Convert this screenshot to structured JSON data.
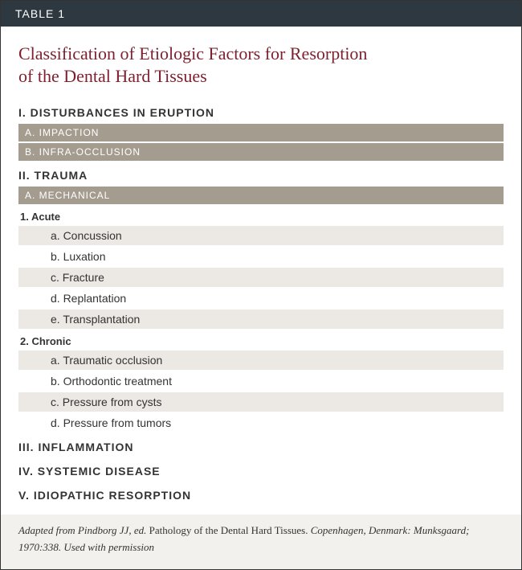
{
  "colors": {
    "header_bg": "#2d3840",
    "header_fg": "#ffffff",
    "title_fg": "#7d1f2f",
    "band_bg": "#a59c90",
    "band_fg": "#ffffff",
    "stripe_bg": "#ece8e3",
    "footer_bg": "#f3f1ee",
    "text": "#333333"
  },
  "header": {
    "label": "TABLE 1"
  },
  "title": {
    "line1": "Classification of Etiologic Factors for Resorption",
    "line2": "of the Dental Hard Tissues"
  },
  "sections": {
    "s1": {
      "heading": "I. DISTURBANCES IN ERUPTION",
      "bands": {
        "a": "A. IMPACTION",
        "b": "B. INFRA-OCCLUSION"
      }
    },
    "s2": {
      "heading": "II. TRAUMA",
      "bands": {
        "a": "A. MECHANICAL"
      },
      "sub1": {
        "heading": "1. Acute",
        "items": {
          "a": "a. Concussion",
          "b": "b. Luxation",
          "c": "c. Fracture",
          "d": "d. Replantation",
          "e": "e. Transplantation"
        }
      },
      "sub2": {
        "heading": "2. Chronic",
        "items": {
          "a": "a. Traumatic occlusion",
          "b": "b. Orthodontic treatment",
          "c": "c. Pressure from cysts",
          "d": "d. Pressure from tumors"
        }
      }
    },
    "s3": {
      "heading": "III. INFLAMMATION"
    },
    "s4": {
      "heading": "IV. SYSTEMIC DISEASE"
    },
    "s5": {
      "heading": "V. IDIOPATHIC RESORPTION"
    }
  },
  "footer": {
    "pre": "Adapted from Pindborg JJ, ed. ",
    "book": "Pathology of the Dental Hard Tissues.",
    "post": " Copenhagen, Denmark: Munksgaard; 1970:338. Used with permission"
  }
}
